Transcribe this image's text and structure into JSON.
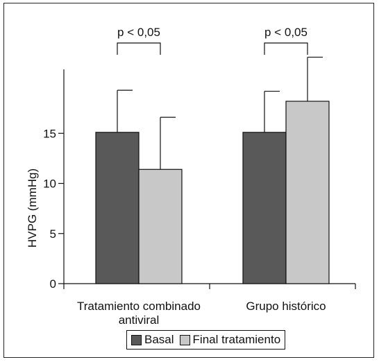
{
  "chart_data": {
    "type": "bar",
    "categories": [
      "Tratamiento combinado antiviral",
      "Grupo histórico"
    ],
    "category_lines": [
      [
        "Tratamiento combinado",
        "antiviral"
      ],
      [
        "Grupo histórico"
      ]
    ],
    "series": [
      {
        "name": "Basal",
        "values": [
          15.1,
          15.1
        ],
        "error_upper": [
          19.3,
          19.2
        ],
        "color": "#595959"
      },
      {
        "name": "Final tratamiento",
        "values": [
          11.4,
          18.2
        ],
        "error_upper": [
          16.6,
          22.6
        ],
        "color": "#c8c8c8"
      }
    ],
    "ylabel": "HVPG (mmHg)",
    "xlabel": "",
    "yticks": [
      0,
      5,
      10,
      15
    ],
    "ylim": [
      0,
      25
    ],
    "significance": [
      {
        "category_index": 0,
        "label": "p < 0,05"
      },
      {
        "category_index": 1,
        "label": "p < 0,05"
      }
    ],
    "legend_position": "bottom",
    "grid": false
  }
}
